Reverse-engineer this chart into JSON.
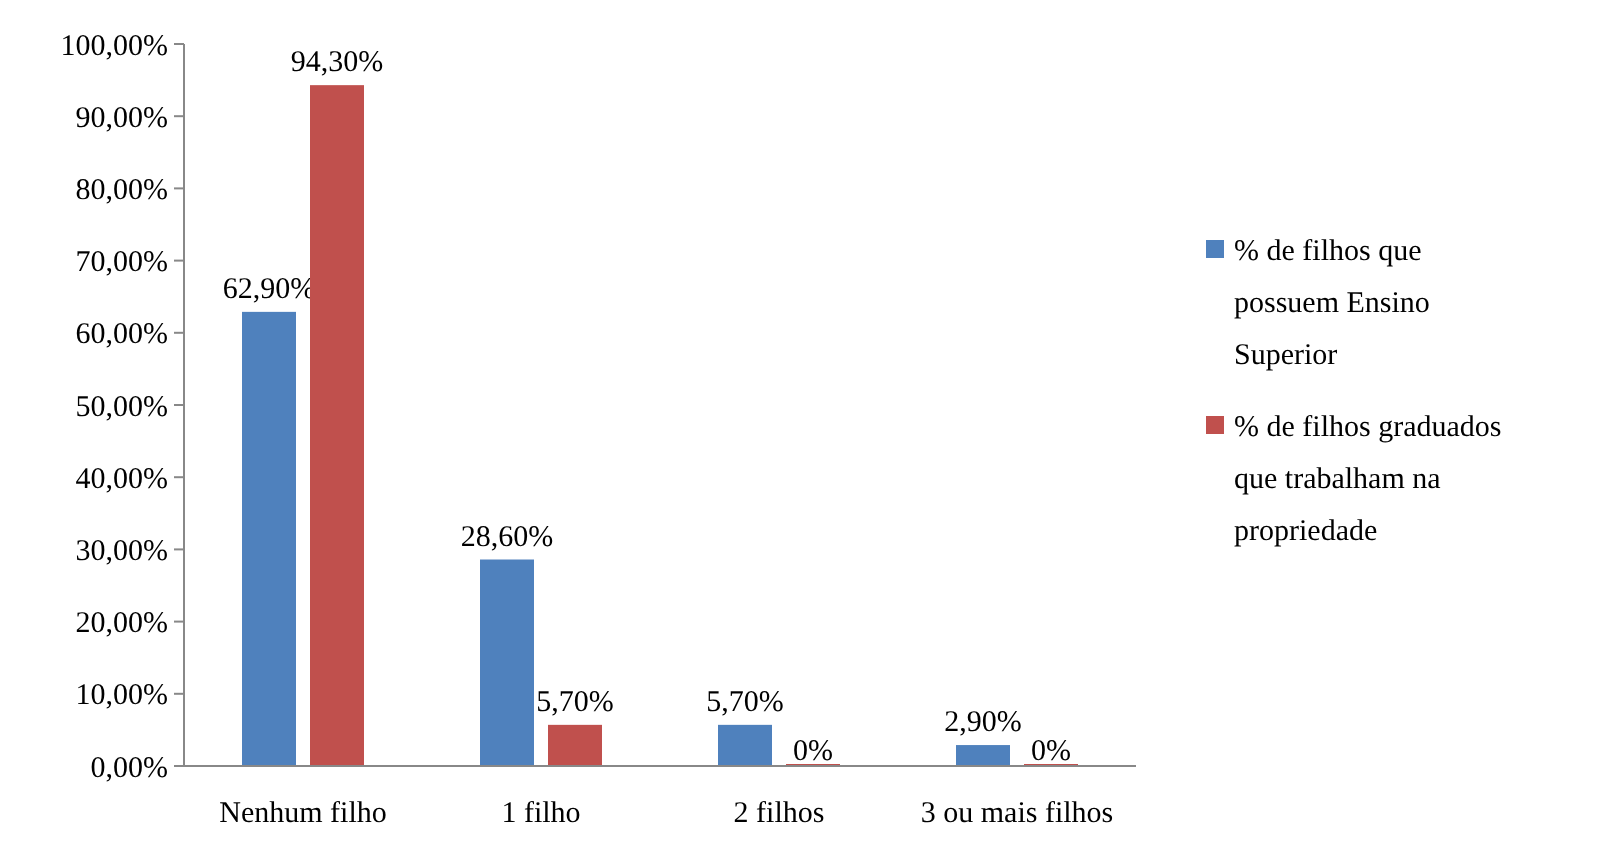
{
  "chart_data": {
    "type": "bar",
    "categories": [
      "Nenhum filho",
      "1 filho",
      "2 filhos",
      "3 ou mais filhos"
    ],
    "series": [
      {
        "name": "% de filhos que possuem Ensino Superior",
        "color": "#4f81bd",
        "values": [
          62.9,
          28.6,
          5.7,
          2.9
        ],
        "value_labels": [
          "62,90%",
          "28,60%",
          "5,70%",
          "2,90%"
        ]
      },
      {
        "name": "% de filhos graduados que trabalham na propriedade",
        "color": "#c0504d",
        "values": [
          94.3,
          5.7,
          0,
          0
        ],
        "value_labels": [
          "94,30%",
          "5,70%",
          "0%",
          "0%"
        ]
      }
    ],
    "ylim": [
      0,
      100
    ],
    "yticks": [
      {
        "value": 0,
        "label": "0,00%"
      },
      {
        "value": 10,
        "label": "10,00%"
      },
      {
        "value": 20,
        "label": "20,00%"
      },
      {
        "value": 30,
        "label": "30,00%"
      },
      {
        "value": 40,
        "label": "40,00%"
      },
      {
        "value": 50,
        "label": "50,00%"
      },
      {
        "value": 60,
        "label": "60,00%"
      },
      {
        "value": 70,
        "label": "70,00%"
      },
      {
        "value": 80,
        "label": "80,00%"
      },
      {
        "value": 90,
        "label": "90,00%"
      },
      {
        "value": 100,
        "label": "100,00%"
      }
    ],
    "grid": false,
    "legend": "right"
  }
}
